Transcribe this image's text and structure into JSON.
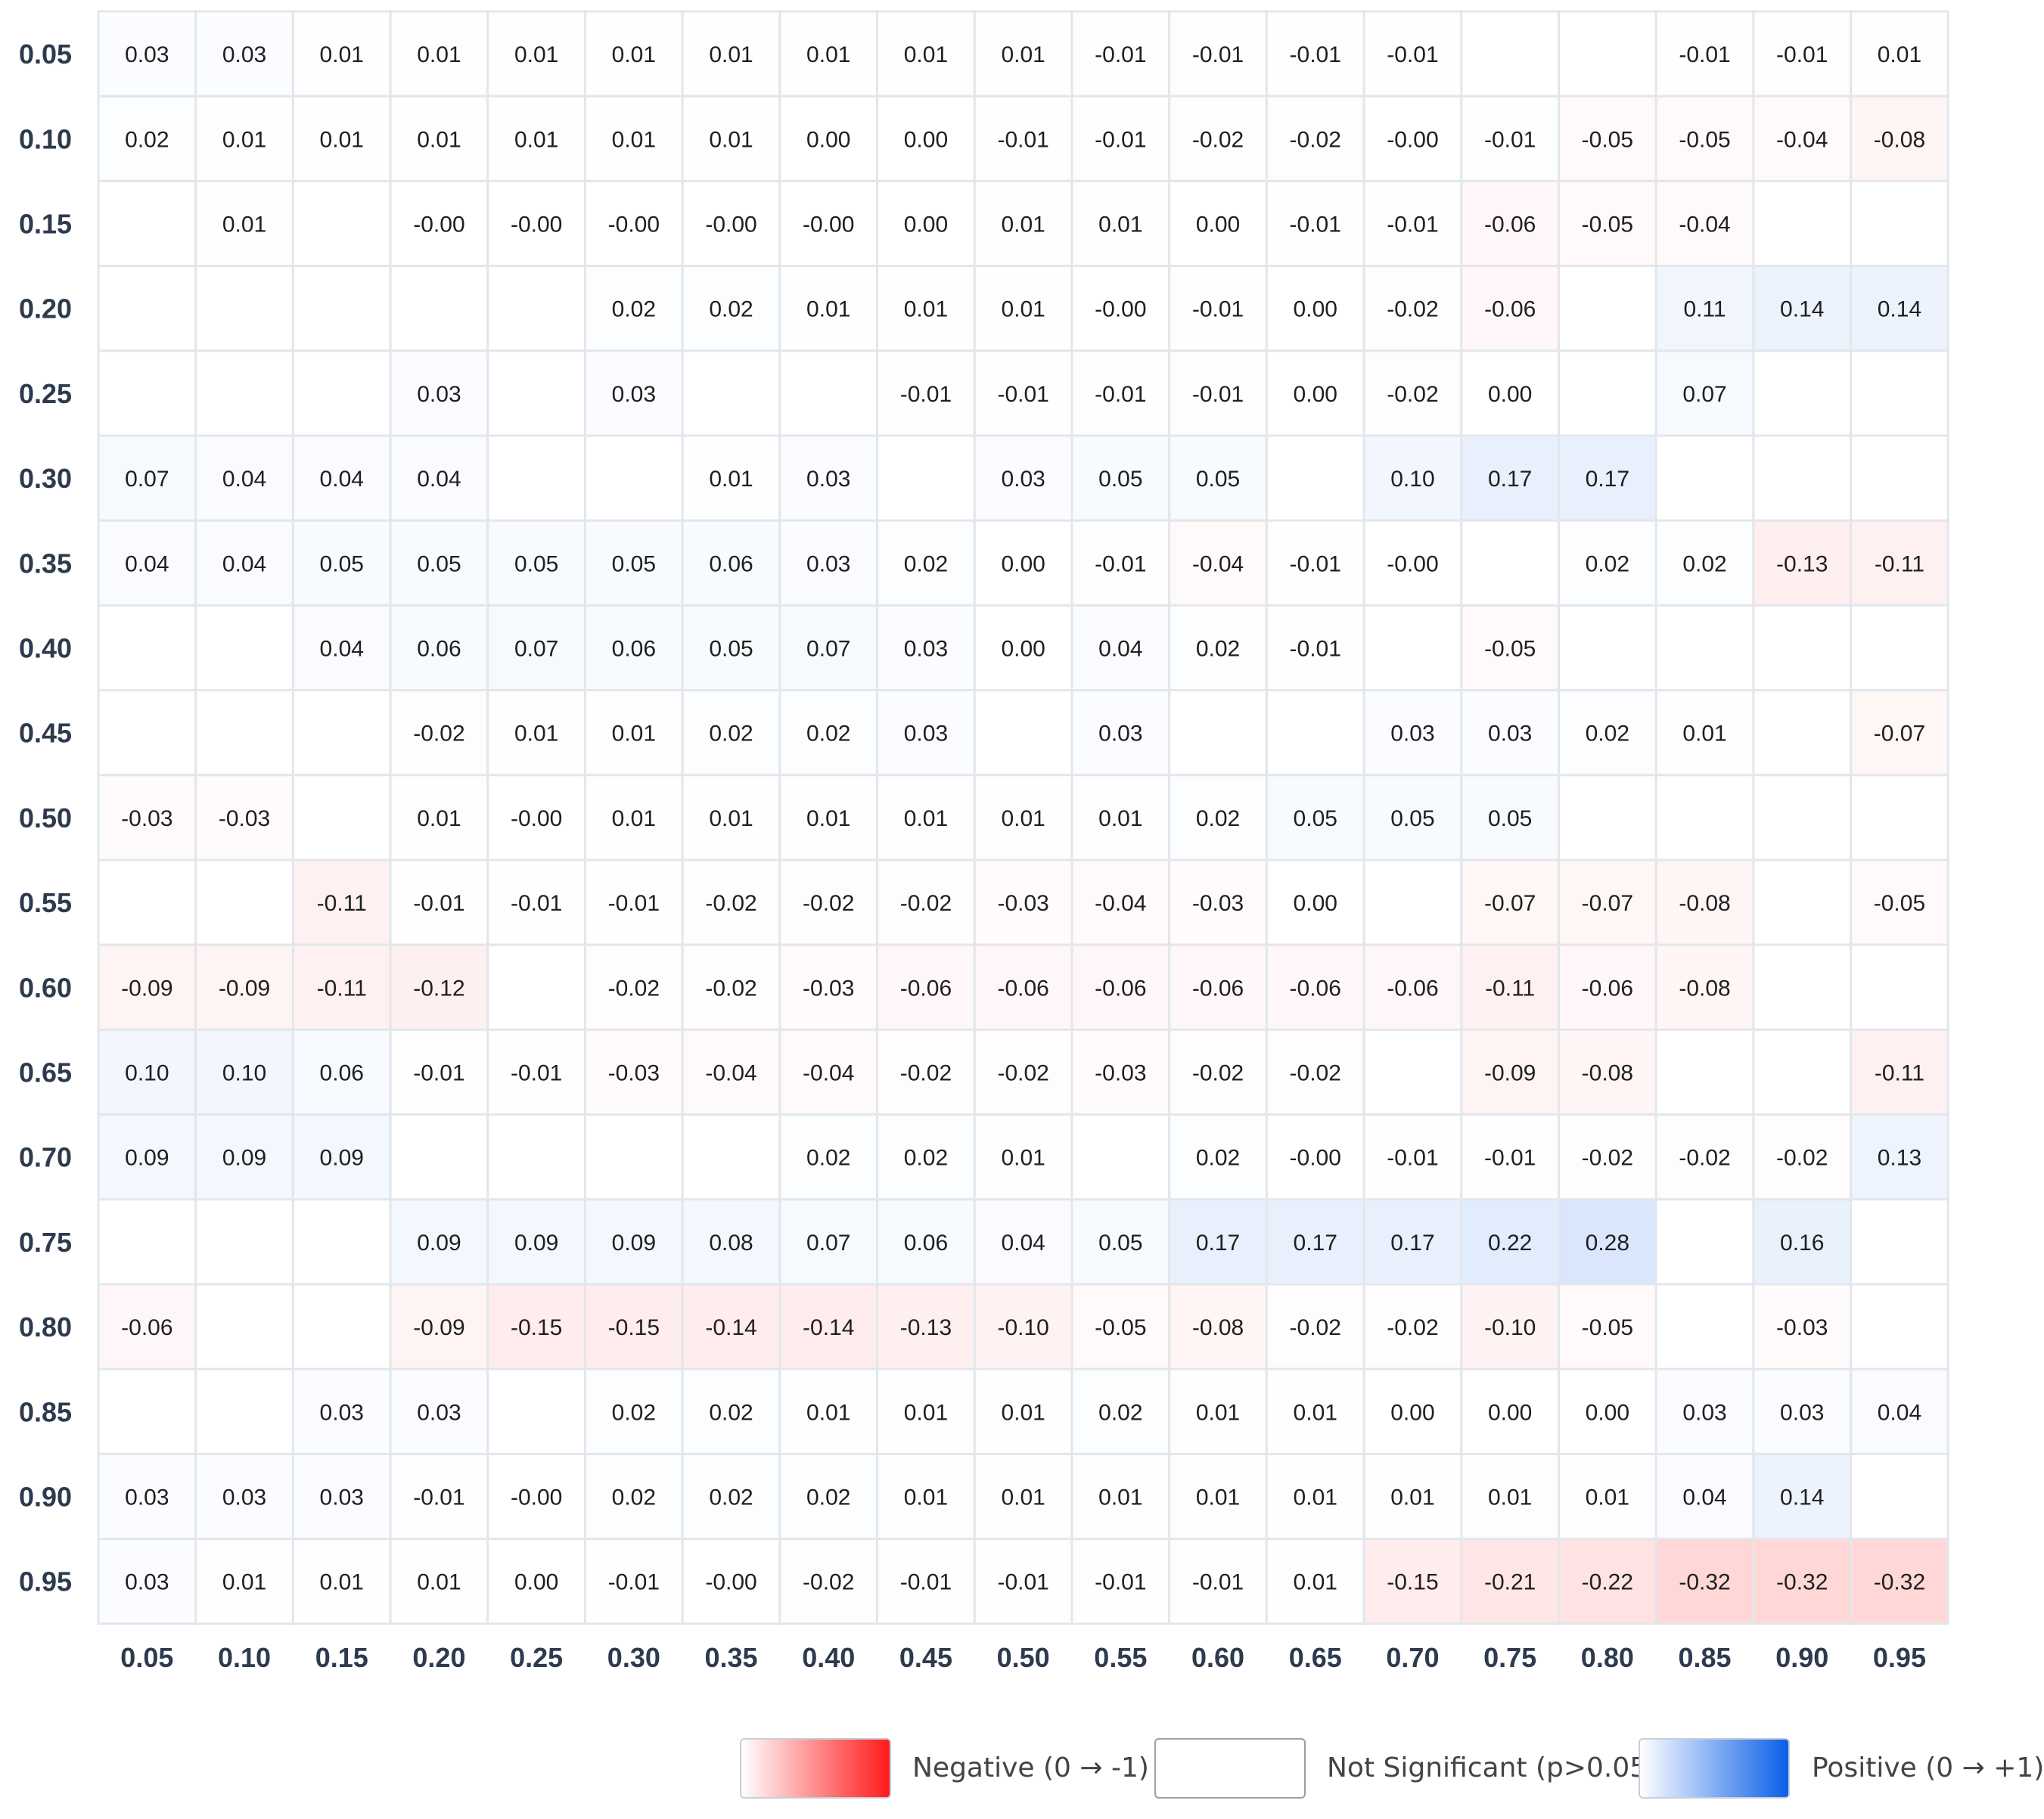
{
  "chart_data": {
    "type": "heatmap",
    "title": "",
    "xlabel": "",
    "ylabel": "",
    "x_ticks": [
      "0.05",
      "0.10",
      "0.15",
      "0.20",
      "0.25",
      "0.30",
      "0.35",
      "0.40",
      "0.45",
      "0.50",
      "0.55",
      "0.60",
      "0.65",
      "0.70",
      "0.75",
      "0.80",
      "0.85",
      "0.90",
      "0.95"
    ],
    "y_ticks": [
      "0.05",
      "0.10",
      "0.15",
      "0.20",
      "0.25",
      "0.30",
      "0.35",
      "0.40",
      "0.45",
      "0.50",
      "0.55",
      "0.60",
      "0.65",
      "0.70",
      "0.75",
      "0.80",
      "0.85",
      "0.90",
      "0.95"
    ],
    "value_range": [
      -1,
      1
    ],
    "negative_color": "#ff1a1a",
    "positive_color": "#0a5fe8",
    "grid_color": "#e3e7ec",
    "cells": [
      [
        "0.03",
        "0.03",
        "0.01",
        "0.01",
        "0.01",
        "0.01",
        "0.01",
        "0.01",
        "0.01",
        "0.01",
        "-0.01",
        "-0.01",
        "-0.01",
        "-0.01",
        null,
        null,
        "-0.01",
        "-0.01",
        "0.01"
      ],
      [
        "0.02",
        "0.01",
        "0.01",
        "0.01",
        "0.01",
        "0.01",
        "0.01",
        "0.00",
        "0.00",
        "-0.01",
        "-0.01",
        "-0.02",
        "-0.02",
        "-0.00",
        "-0.01",
        "-0.05",
        "-0.05",
        "-0.04",
        "-0.08"
      ],
      [
        null,
        "0.01",
        null,
        "-0.00",
        "-0.00",
        "-0.00",
        "-0.00",
        "-0.00",
        "0.00",
        "0.01",
        "0.01",
        "0.00",
        "-0.01",
        "-0.01",
        "-0.06",
        "-0.05",
        "-0.04",
        null,
        null
      ],
      [
        null,
        null,
        null,
        null,
        null,
        "0.02",
        "0.02",
        "0.01",
        "0.01",
        "0.01",
        "-0.00",
        "-0.01",
        "0.00",
        "-0.02",
        "-0.06",
        null,
        "0.11",
        "0.14",
        "0.14"
      ],
      [
        null,
        null,
        null,
        "0.03",
        null,
        "0.03",
        null,
        null,
        "-0.01",
        "-0.01",
        "-0.01",
        "-0.01",
        "0.00",
        "-0.02",
        "0.00",
        null,
        "0.07",
        null,
        null
      ],
      [
        "0.07",
        "0.04",
        "0.04",
        "0.04",
        null,
        null,
        "0.01",
        "0.03",
        null,
        "0.03",
        "0.05",
        "0.05",
        null,
        "0.10",
        "0.17",
        "0.17",
        null,
        null,
        null
      ],
      [
        "0.04",
        "0.04",
        "0.05",
        "0.05",
        "0.05",
        "0.05",
        "0.06",
        "0.03",
        "0.02",
        "0.00",
        "-0.01",
        "-0.04",
        "-0.01",
        "-0.00",
        null,
        "0.02",
        "0.02",
        "-0.13",
        "-0.11"
      ],
      [
        null,
        null,
        "0.04",
        "0.06",
        "0.07",
        "0.06",
        "0.05",
        "0.07",
        "0.03",
        "0.00",
        "0.04",
        "0.02",
        "-0.01",
        null,
        "-0.05",
        null,
        null,
        null,
        null
      ],
      [
        null,
        null,
        null,
        "-0.02",
        "0.01",
        "0.01",
        "0.02",
        "0.02",
        "0.03",
        null,
        "0.03",
        null,
        null,
        "0.03",
        "0.03",
        "0.02",
        "0.01",
        null,
        "-0.07"
      ],
      [
        "-0.03",
        "-0.03",
        null,
        "0.01",
        "-0.00",
        "0.01",
        "0.01",
        "0.01",
        "0.01",
        "0.01",
        "0.01",
        "0.02",
        "0.05",
        "0.05",
        "0.05",
        null,
        null,
        null,
        null
      ],
      [
        null,
        null,
        "-0.11",
        "-0.01",
        "-0.01",
        "-0.01",
        "-0.02",
        "-0.02",
        "-0.02",
        "-0.03",
        "-0.04",
        "-0.03",
        "0.00",
        null,
        "-0.07",
        "-0.07",
        "-0.08",
        null,
        "-0.05"
      ],
      [
        "-0.09",
        "-0.09",
        "-0.11",
        "-0.12",
        null,
        "-0.02",
        "-0.02",
        "-0.03",
        "-0.06",
        "-0.06",
        "-0.06",
        "-0.06",
        "-0.06",
        "-0.06",
        "-0.11",
        "-0.06",
        "-0.08",
        null,
        null
      ],
      [
        "0.10",
        "0.10",
        "0.06",
        "-0.01",
        "-0.01",
        "-0.03",
        "-0.04",
        "-0.04",
        "-0.02",
        "-0.02",
        "-0.03",
        "-0.02",
        "-0.02",
        null,
        "-0.09",
        "-0.08",
        null,
        null,
        "-0.11"
      ],
      [
        "0.09",
        "0.09",
        "0.09",
        null,
        null,
        null,
        null,
        "0.02",
        "0.02",
        "0.01",
        null,
        "0.02",
        "-0.00",
        "-0.01",
        "-0.01",
        "-0.02",
        "-0.02",
        "-0.02",
        "0.13"
      ],
      [
        null,
        null,
        null,
        "0.09",
        "0.09",
        "0.09",
        "0.08",
        "0.07",
        "0.06",
        "0.04",
        "0.05",
        "0.17",
        "0.17",
        "0.17",
        "0.22",
        "0.28",
        null,
        "0.16",
        null
      ],
      [
        "-0.06",
        null,
        null,
        "-0.09",
        "-0.15",
        "-0.15",
        "-0.14",
        "-0.14",
        "-0.13",
        "-0.10",
        "-0.05",
        "-0.08",
        "-0.02",
        "-0.02",
        "-0.10",
        "-0.05",
        null,
        "-0.03",
        null
      ],
      [
        null,
        null,
        "0.03",
        "0.03",
        null,
        "0.02",
        "0.02",
        "0.01",
        "0.01",
        "0.01",
        "0.02",
        "0.01",
        "0.01",
        "0.00",
        "0.00",
        "0.00",
        "0.03",
        "0.03",
        "0.04"
      ],
      [
        "0.03",
        "0.03",
        "0.03",
        "-0.01",
        "-0.00",
        "0.02",
        "0.02",
        "0.02",
        "0.01",
        "0.01",
        "0.01",
        "0.01",
        "0.01",
        "0.01",
        "0.01",
        "0.01",
        "0.04",
        "0.14",
        null
      ],
      [
        "0.03",
        "0.01",
        "0.01",
        "0.01",
        "0.00",
        "-0.01",
        "-0.00",
        "-0.02",
        "-0.01",
        "-0.01",
        "-0.01",
        "-0.01",
        "0.01",
        "-0.15",
        "-0.21",
        "-0.22",
        "-0.32",
        "-0.32",
        "-0.32"
      ]
    ]
  },
  "legend": {
    "negative_label": "Negative (0 → -1)",
    "not_significant_label": "Not Significant (p>0.05)",
    "positive_label": "Positive (0 → +1)"
  }
}
